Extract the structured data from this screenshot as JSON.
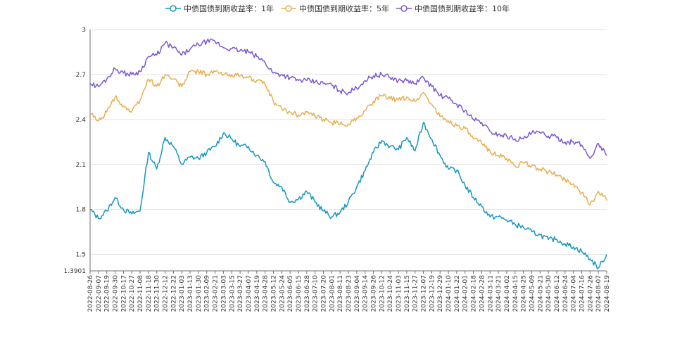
{
  "chart_data": {
    "type": "line",
    "title": "",
    "xlabel": "",
    "ylabel": "",
    "ylim": [
      1.3901,
      3.0
    ],
    "y_ticks": [
      "3",
      "2.7",
      "2.4",
      "2.1",
      "1.8",
      "1.5",
      "1.3901"
    ],
    "y_tick_values": [
      3.0,
      2.7,
      2.4,
      2.1,
      1.8,
      1.5,
      1.3901
    ],
    "grid": "horizontal",
    "legend_position": "top-center",
    "x": [
      "2022-08-26",
      "2022-09-07",
      "2022-09-19",
      "2022-09-30",
      "2022-10-17",
      "2022-10-27",
      "2022-11-08",
      "2022-11-18",
      "2022-11-30",
      "2022-12-12",
      "2022-12-22",
      "2023-01-03",
      "2023-01-13",
      "2023-01-30",
      "2023-02-09",
      "2023-02-21",
      "2023-03-03",
      "2023-03-15",
      "2023-03-27",
      "2023-04-07",
      "2023-04-19",
      "2023-04-28",
      "2023-05-12",
      "2023-05-24",
      "2023-06-05",
      "2023-06-15",
      "2023-06-28",
      "2023-07-10",
      "2023-07-20",
      "2023-08-01",
      "2023-08-11",
      "2023-08-23",
      "2023-09-04",
      "2023-09-14",
      "2023-09-26",
      "2023-10-12",
      "2023-10-24",
      "2023-11-03",
      "2023-11-15",
      "2023-11-27",
      "2023-12-07",
      "2023-12-19",
      "2023-12-29",
      "2024-01-10",
      "2024-01-22",
      "2024-02-01",
      "2024-02-18",
      "2024-02-28",
      "2024-03-11",
      "2024-03-21",
      "2024-04-02",
      "2024-04-15",
      "2024-04-25",
      "2024-05-09",
      "2024-05-21",
      "2024-05-30",
      "2024-06-12",
      "2024-06-24",
      "2024-07-04",
      "2024-07-16",
      "2024-07-26",
      "2024-08-07",
      "2024-08-19"
    ],
    "series": [
      {
        "name": "中债国债到期收益率：1年",
        "color": "#1595c0",
        "values": [
          1.8,
          1.74,
          1.79,
          1.88,
          1.8,
          1.77,
          1.79,
          2.18,
          2.07,
          2.28,
          2.22,
          2.1,
          2.15,
          2.14,
          2.18,
          2.22,
          2.31,
          2.27,
          2.22,
          2.22,
          2.16,
          2.12,
          1.98,
          1.95,
          1.85,
          1.87,
          1.92,
          1.85,
          1.79,
          1.75,
          1.78,
          1.85,
          1.95,
          2.06,
          2.18,
          2.26,
          2.22,
          2.2,
          2.28,
          2.19,
          2.38,
          2.27,
          2.16,
          2.07,
          2.06,
          1.96,
          1.88,
          1.82,
          1.75,
          1.75,
          1.73,
          1.7,
          1.68,
          1.65,
          1.63,
          1.6,
          1.6,
          1.57,
          1.55,
          1.52,
          1.47,
          1.41,
          1.5
        ]
      },
      {
        "name": "中债国债到期收益率：5年",
        "color": "#e8ad4f",
        "values": [
          2.44,
          2.39,
          2.45,
          2.55,
          2.49,
          2.45,
          2.53,
          2.67,
          2.62,
          2.7,
          2.67,
          2.62,
          2.72,
          2.72,
          2.7,
          2.72,
          2.7,
          2.7,
          2.69,
          2.68,
          2.66,
          2.63,
          2.52,
          2.47,
          2.45,
          2.43,
          2.45,
          2.42,
          2.4,
          2.38,
          2.37,
          2.37,
          2.41,
          2.46,
          2.52,
          2.56,
          2.54,
          2.53,
          2.55,
          2.52,
          2.58,
          2.5,
          2.42,
          2.39,
          2.36,
          2.34,
          2.27,
          2.24,
          2.19,
          2.16,
          2.14,
          2.09,
          2.11,
          2.09,
          2.07,
          2.05,
          2.03,
          2.0,
          1.97,
          1.91,
          1.83,
          1.92,
          1.86
        ]
      },
      {
        "name": "中债国债到期收益率：10年",
        "color": "#7b57d1",
        "values": [
          2.64,
          2.62,
          2.67,
          2.74,
          2.71,
          2.7,
          2.72,
          2.82,
          2.83,
          2.91,
          2.88,
          2.83,
          2.87,
          2.9,
          2.92,
          2.92,
          2.88,
          2.87,
          2.86,
          2.85,
          2.82,
          2.78,
          2.71,
          2.7,
          2.68,
          2.66,
          2.66,
          2.65,
          2.64,
          2.63,
          2.59,
          2.58,
          2.61,
          2.66,
          2.69,
          2.7,
          2.68,
          2.66,
          2.66,
          2.64,
          2.68,
          2.62,
          2.56,
          2.54,
          2.5,
          2.46,
          2.4,
          2.38,
          2.32,
          2.3,
          2.29,
          2.27,
          2.27,
          2.31,
          2.31,
          2.29,
          2.28,
          2.25,
          2.25,
          2.23,
          2.14,
          2.24,
          2.16
        ]
      }
    ]
  }
}
